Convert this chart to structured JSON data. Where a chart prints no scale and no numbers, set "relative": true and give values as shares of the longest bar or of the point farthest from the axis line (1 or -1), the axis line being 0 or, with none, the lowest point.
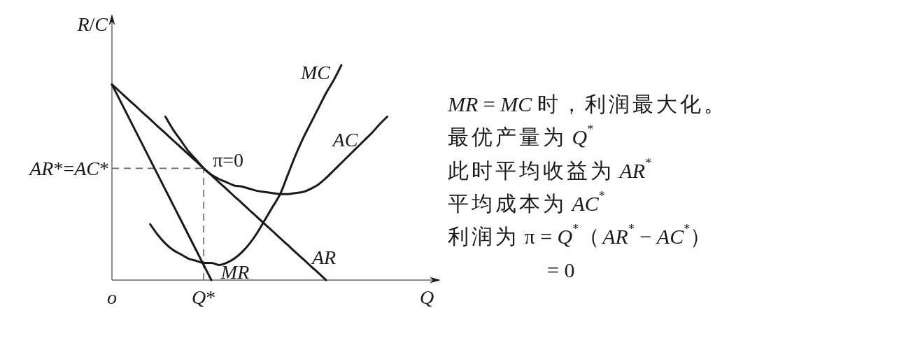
{
  "chart_data": {
    "type": "line",
    "relative": true,
    "xlabel": "Q",
    "ylabel": "R/C",
    "categories": [
      "o",
      null,
      null,
      null,
      null,
      null,
      null,
      null,
      null,
      null,
      null,
      null,
      "Q*",
      null,
      null,
      null,
      null,
      null,
      null,
      null,
      null,
      null,
      null,
      null,
      null,
      null,
      null,
      null,
      null,
      null,
      null,
      null,
      null,
      null,
      null,
      null,
      null,
      null,
      null,
      null,
      null,
      null,
      null,
      null
    ],
    "series": [
      {
        "name": "MC",
        "color": "#1a1a1a",
        "values": [
          null,
          null,
          null,
          null,
          null,
          0.26,
          0.21,
          0.17,
          0.14,
          0.12,
          0.1,
          0.09,
          0.08,
          0.08,
          0.07,
          0.08,
          0.1,
          0.13,
          0.17,
          0.22,
          0.28,
          0.34,
          0.4,
          0.49,
          0.58,
          0.66,
          0.73,
          0.8,
          0.87,
          0.93,
          1,
          null,
          null,
          null,
          null,
          null,
          null,
          null,
          null,
          null,
          null,
          null,
          null,
          null
        ]
      },
      {
        "name": "AC",
        "color": "#1a1a1a",
        "values": [
          null,
          null,
          null,
          null,
          null,
          null,
          null,
          0.76,
          0.7,
          0.65,
          0.6,
          0.56,
          0.52,
          0.49,
          0.47,
          0.455,
          0.44,
          0.435,
          0.425,
          0.415,
          0.41,
          0.405,
          0.4,
          0.4,
          0.405,
          0.41,
          0.425,
          0.445,
          0.475,
          0.51,
          0.545,
          0.58,
          0.615,
          0.65,
          0.685,
          0.725,
          0.76,
          null,
          null,
          null,
          null,
          null,
          null,
          null
        ]
      },
      {
        "name": "AR",
        "color": "#1a1a1a",
        "values": [
          0.91,
          0.878,
          0.845,
          0.813,
          0.78,
          0.748,
          0.715,
          0.683,
          0.65,
          0.618,
          0.585,
          0.553,
          0.52,
          0.488,
          0.455,
          0.423,
          0.39,
          0.358,
          0.325,
          0.293,
          0.26,
          0.228,
          0.195,
          0.163,
          0.13,
          0.098,
          0.065,
          0.033,
          0,
          null,
          null,
          null,
          null,
          null,
          null,
          null,
          null,
          null,
          null,
          null,
          null,
          null,
          null,
          null
        ]
      },
      {
        "name": "MR",
        "color": "#1a1a1a",
        "values": [
          0.91,
          0.84,
          0.77,
          0.7,
          0.63,
          0.56,
          0.49,
          0.42,
          0.35,
          0.28,
          0.21,
          0.14,
          0.07,
          0,
          null,
          null,
          null,
          null,
          null,
          null,
          null,
          null,
          null,
          null,
          null,
          null,
          null,
          null,
          null,
          null,
          null,
          null,
          null,
          null,
          null,
          null,
          null,
          null,
          null,
          null,
          null,
          null,
          null,
          null
        ]
      }
    ],
    "ref_lines": [
      {
        "axis": "y",
        "value": 0.52,
        "label": "AR*=AC*",
        "color": "#666666",
        "line_style": "dashed"
      },
      {
        "axis": "x",
        "value": "Q*",
        "color": "#666666",
        "line_style": "dashed"
      }
    ],
    "annotations": [
      {
        "text": "π=0",
        "x": "Q*",
        "y": 0.52
      },
      "MR = MC 时，利润最大化。",
      "最优产量为 Q$^{*}$",
      "此时平均收益为 AR$^{*}$",
      "平均成本为 AC$^{*}$",
      "利润为 π = Q$^{*}$（AR$^{*}$ − AC$^{*}$）",
      "= 0"
    ]
  }
}
